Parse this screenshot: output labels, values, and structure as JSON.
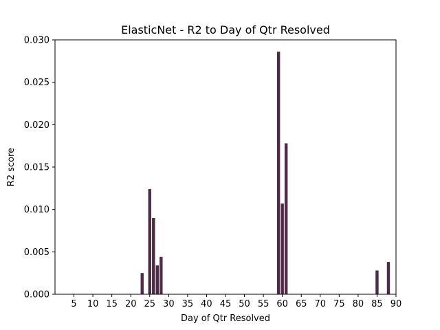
{
  "chart_data": {
    "type": "bar",
    "title": "ElasticNet - R2 to Day of Qtr Resolved",
    "xlabel": "Day of Qtr Resolved",
    "ylabel": "R2 score",
    "xlim": [
      0,
      90
    ],
    "ylim": [
      0,
      0.03
    ],
    "xticks": [
      5,
      10,
      15,
      20,
      25,
      30,
      35,
      40,
      45,
      50,
      55,
      60,
      65,
      70,
      75,
      80,
      85,
      90
    ],
    "yticks": [
      "0.000",
      "0.005",
      "0.010",
      "0.015",
      "0.020",
      "0.025",
      "0.030"
    ],
    "bar_color": "#4e2c47",
    "grid": false,
    "x": [
      23,
      25,
      26,
      27,
      28,
      59,
      60,
      61,
      85,
      88
    ],
    "values": [
      0.0025,
      0.0124,
      0.009,
      0.0034,
      0.0044,
      0.0286,
      0.0107,
      0.0178,
      0.0028,
      0.0038
    ]
  }
}
